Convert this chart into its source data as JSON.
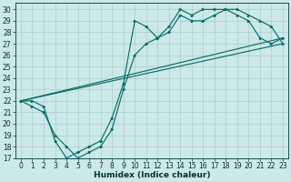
{
  "xlabel": "Humidex (Indice chaleur)",
  "bg_color": "#cce8e8",
  "grid_color": "#aacccc",
  "line_color": "#006666",
  "xlim": [
    -0.5,
    23.5
  ],
  "ylim": [
    17,
    30.6
  ],
  "yticks": [
    17,
    18,
    19,
    20,
    21,
    22,
    23,
    24,
    25,
    26,
    27,
    28,
    29,
    30
  ],
  "xticks": [
    0,
    1,
    2,
    3,
    4,
    5,
    6,
    7,
    8,
    9,
    10,
    11,
    12,
    13,
    14,
    15,
    16,
    17,
    18,
    19,
    20,
    21,
    22,
    23
  ],
  "series": [
    {
      "x": [
        0,
        1,
        2,
        3,
        4,
        5,
        6,
        7,
        8,
        9,
        10,
        11,
        12,
        13,
        14,
        15,
        16,
        17,
        18,
        19,
        20,
        21,
        22,
        23
      ],
      "y": [
        22,
        22,
        21.5,
        18.5,
        17,
        17.5,
        18,
        18.5,
        20.5,
        23.5,
        29,
        28.5,
        27.5,
        28.5,
        30,
        29.5,
        30,
        30,
        30,
        30,
        29.5,
        29,
        28.5,
        27
      ],
      "marker": true
    },
    {
      "x": [
        0,
        1,
        2,
        3,
        4,
        5,
        6,
        7,
        8,
        9,
        10,
        11,
        12,
        13,
        14,
        15,
        16,
        17,
        18,
        19,
        20,
        21,
        22,
        23
      ],
      "y": [
        22,
        21.5,
        21,
        19,
        18,
        17,
        17.5,
        18,
        19.5,
        23,
        26,
        27,
        27.5,
        28,
        29.5,
        29,
        29,
        29.5,
        30,
        29.5,
        29,
        27.5,
        27,
        27.5
      ],
      "marker": true
    },
    {
      "x": [
        0,
        23
      ],
      "y": [
        22,
        27
      ],
      "marker": false
    },
    {
      "x": [
        0,
        23
      ],
      "y": [
        22,
        27.5
      ],
      "marker": false
    }
  ]
}
